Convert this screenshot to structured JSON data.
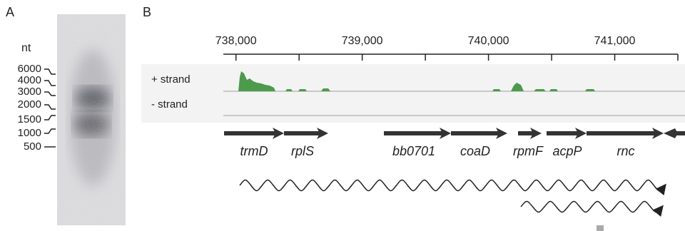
{
  "panel_a": {
    "label": "A",
    "unit": "nt",
    "ladder": [
      "6000",
      "4000",
      "3000",
      "2000",
      "1500",
      "1000",
      "500"
    ]
  },
  "panel_b": {
    "label": "B",
    "axis": {
      "xlim": [
        737900,
        741500
      ],
      "xticks": [
        {
          "value": 738000,
          "label": "738,000"
        },
        {
          "value": 739000,
          "label": "739,000"
        },
        {
          "value": 740000,
          "label": "740,000"
        },
        {
          "value": 741000,
          "label": "741,000"
        }
      ],
      "minor_xticks": [
        738500,
        739500,
        740500,
        741500
      ]
    },
    "tracks": [
      "+ strand",
      "-  strand"
    ],
    "genes": [
      "trmD",
      "rplS",
      "bb0701",
      "coaD",
      "rpmF",
      "acpP",
      "rnc"
    ]
  }
}
